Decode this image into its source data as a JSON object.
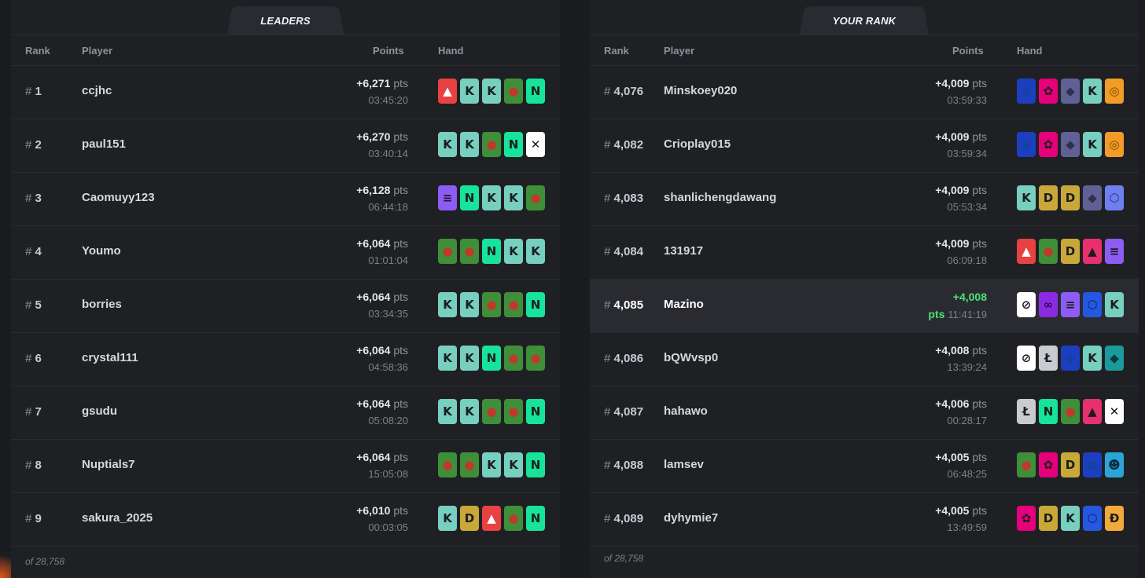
{
  "leaders": {
    "tab_label": "LEADERS",
    "columns": {
      "rank": "Rank",
      "player": "Player",
      "points": "Points",
      "hand": "Hand"
    },
    "rows": [
      {
        "rank": "1",
        "player": "ccjhc",
        "points": "+6,271",
        "unit": "pts",
        "time": "03:45:20",
        "hand": [
          "avax",
          "kava",
          "kava",
          "pepe",
          "near"
        ]
      },
      {
        "rank": "2",
        "player": "paul151",
        "points": "+6,270",
        "unit": "pts",
        "time": "03:40:14",
        "hand": [
          "kava",
          "kava",
          "pepe",
          "near",
          "xrp"
        ]
      },
      {
        "rank": "3",
        "player": "Caomuyy123",
        "points": "+6,128",
        "unit": "pts",
        "time": "06:44:18",
        "hand": [
          "sol",
          "near",
          "kava",
          "kava",
          "pepe"
        ]
      },
      {
        "rank": "4",
        "player": "Youmo",
        "points": "+6,064",
        "unit": "pts",
        "time": "01:01:04",
        "hand": [
          "pepe",
          "pepe",
          "near",
          "kava",
          "kava"
        ]
      },
      {
        "rank": "5",
        "player": "borries",
        "points": "+6,064",
        "unit": "pts",
        "time": "03:34:35",
        "hand": [
          "kava",
          "kava",
          "pepe",
          "pepe",
          "near"
        ]
      },
      {
        "rank": "6",
        "player": "crystal111",
        "points": "+6,064",
        "unit": "pts",
        "time": "04:58:36",
        "hand": [
          "kava",
          "kava",
          "near",
          "pepe",
          "pepe"
        ]
      },
      {
        "rank": "7",
        "player": "gsudu",
        "points": "+6,064",
        "unit": "pts",
        "time": "05:08:20",
        "hand": [
          "kava",
          "kava",
          "pepe",
          "pepe",
          "near"
        ]
      },
      {
        "rank": "8",
        "player": "Nuptials7",
        "points": "+6,064",
        "unit": "pts",
        "time": "15:05:08",
        "hand": [
          "pepe",
          "pepe",
          "kava",
          "kava",
          "near"
        ]
      },
      {
        "rank": "9",
        "player": "sakura_2025",
        "points": "+6,010",
        "unit": "pts",
        "time": "00:03:05",
        "hand": [
          "kava",
          "doge",
          "avax",
          "pepe",
          "near"
        ]
      }
    ],
    "footer": "of 28,758"
  },
  "your_rank": {
    "tab_label": "YOUR RANK",
    "columns": {
      "rank": "Rank",
      "player": "Player",
      "points": "Points",
      "hand": "Hand"
    },
    "rows": [
      {
        "rank": "4,076",
        "player": "Minskoey020",
        "points": "+4,009",
        "unit": "pts",
        "time": "03:59:33",
        "hand": [
          "blue",
          "dot",
          "eth",
          "kava",
          "orange"
        ],
        "current": false
      },
      {
        "rank": "4,082",
        "player": "Crioplay015",
        "points": "+4,009",
        "unit": "pts",
        "time": "03:59:34",
        "hand": [
          "blue",
          "dot",
          "eth",
          "kava",
          "orange"
        ],
        "current": false
      },
      {
        "rank": "4,083",
        "player": "shanlichengdawang",
        "points": "+4,009",
        "unit": "pts",
        "time": "05:53:34",
        "hand": [
          "kava",
          "doge",
          "doge",
          "eth",
          "purple"
        ],
        "current": false
      },
      {
        "rank": "4,084",
        "player": "131917",
        "points": "+4,009",
        "unit": "pts",
        "time": "06:09:18",
        "hand": [
          "avax",
          "pepe",
          "doge",
          "pink",
          "sol"
        ],
        "current": false
      },
      {
        "rank": "4,085",
        "player": "Mazino",
        "points": "+4,008",
        "unit": "pts",
        "time": "11:41:19",
        "hand": [
          "xlm",
          "matic",
          "sol",
          "blue2",
          "kava"
        ],
        "current": true
      },
      {
        "rank": "4,086",
        "player": "bQWvsp0",
        "points": "+4,008",
        "unit": "pts",
        "time": "13:39:24",
        "hand": [
          "xlm",
          "ltc",
          "blue",
          "kava",
          "teal"
        ],
        "current": false
      },
      {
        "rank": "4,087",
        "player": "hahawo",
        "points": "+4,006",
        "unit": "pts",
        "time": "00:28:17",
        "hand": [
          "ltc",
          "near",
          "pepe",
          "pink",
          "xrp"
        ],
        "current": false
      },
      {
        "rank": "4,088",
        "player": "lamsev",
        "points": "+4,005",
        "unit": "pts",
        "time": "06:48:25",
        "hand": [
          "pepe",
          "dot",
          "doge",
          "blue",
          "cyan"
        ],
        "current": false
      },
      {
        "rank": "4,089",
        "player": "dyhymie7",
        "points": "+4,005",
        "unit": "pts",
        "time": "13:49:59",
        "hand": [
          "dot",
          "doge",
          "kava",
          "blue2",
          "orange2"
        ],
        "current": false
      }
    ],
    "footer": "of 28,758"
  },
  "card_styles": {
    "avax": {
      "bg": "#e84142",
      "glyph": "▲",
      "color": "#ffffff",
      "icon": "avalanche-card-icon"
    },
    "kava": {
      "bg": "#77cfc0",
      "glyph": "K",
      "color": "#1b1c20",
      "icon": "kava-card-icon"
    },
    "pepe": {
      "bg": "#3f8f3a",
      "glyph": "●",
      "color": "#c0392b",
      "icon": "pepe-card-icon"
    },
    "near": {
      "bg": "#17e39a",
      "glyph": "N",
      "color": "#1b1c20",
      "icon": "near-card-icon"
    },
    "xrp": {
      "bg": "#ffffff",
      "glyph": "✕",
      "color": "#1b1c20",
      "icon": "xrp-card-icon"
    },
    "sol": {
      "bg": "#8c5cf5",
      "glyph": "≡",
      "color": "#1b1c20",
      "icon": "solana-card-icon"
    },
    "doge": {
      "bg": "#c9a83a",
      "glyph": "D",
      "color": "#1b1c20",
      "icon": "doge-card-icon"
    },
    "blue": {
      "bg": "#1c3fbf",
      "glyph": "●",
      "color": "#1540a8",
      "icon": "cardano-card-icon"
    },
    "dot": {
      "bg": "#e6007a",
      "glyph": "✿",
      "color": "#1b1c20",
      "icon": "polkadot-card-icon"
    },
    "eth": {
      "bg": "#5f6196",
      "glyph": "◆",
      "color": "#2f3050",
      "icon": "ethereum-card-icon"
    },
    "orange": {
      "bg": "#f29b26",
      "glyph": "◎",
      "color": "#7a4a00",
      "icon": "orange-token-card-icon"
    },
    "purple": {
      "bg": "#6f7ff0",
      "glyph": "⬡",
      "color": "#2c2f8a",
      "icon": "purple-token-card-icon"
    },
    "pink": {
      "bg": "#e8306e",
      "glyph": "▲",
      "color": "#1b1c20",
      "icon": "pink-token-card-icon"
    },
    "xlm": {
      "bg": "#ffffff",
      "glyph": "⊘",
      "color": "#1b1c20",
      "icon": "stellar-card-icon"
    },
    "matic": {
      "bg": "#8a2be2",
      "glyph": "∞",
      "color": "#2a0a55",
      "icon": "polygon-card-icon"
    },
    "blue2": {
      "bg": "#2458e0",
      "glyph": "⬡",
      "color": "#0c1f5c",
      "icon": "chainlink-card-icon"
    },
    "ltc": {
      "bg": "#c9cbd0",
      "glyph": "Ł",
      "color": "#1b1c20",
      "icon": "litecoin-card-icon"
    },
    "teal": {
      "bg": "#1a9a9a",
      "glyph": "◆",
      "color": "#0b3a3a",
      "icon": "teal-token-card-icon"
    },
    "cyan": {
      "bg": "#2aa5d8",
      "glyph": "☻",
      "color": "#0b2d45",
      "icon": "cyan-token-card-icon"
    },
    "orange2": {
      "bg": "#f2a93b",
      "glyph": "Đ",
      "color": "#1b1c20",
      "icon": "dash-token-card-icon"
    }
  }
}
